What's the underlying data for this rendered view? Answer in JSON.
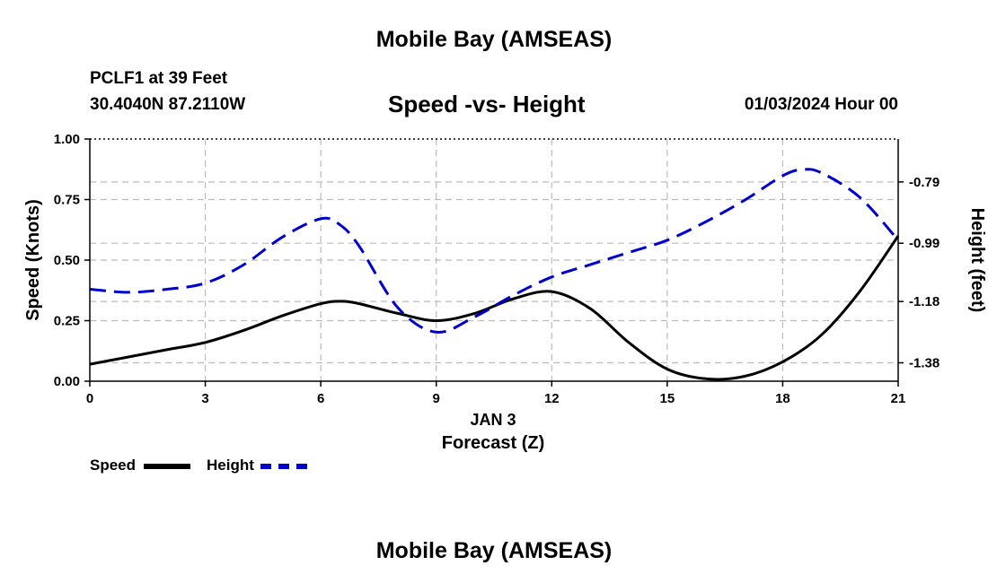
{
  "header": {
    "title": "Mobile Bay (AMSEAS)",
    "station": "PCLF1 at 39 Feet",
    "coords": "30.4040N  87.2110W",
    "subtitle": "Speed -vs- Height",
    "datetime": "01/03/2024 Hour 00"
  },
  "footer": {
    "title": "Mobile Bay (AMSEAS)"
  },
  "legend": {
    "speed_label": "Speed",
    "height_label": "Height"
  },
  "colors": {
    "speed": "#000000",
    "height": "#0000cc",
    "grid": "#bbbbbb"
  },
  "chart_data": {
    "type": "line",
    "xlabel": "Forecast (Z)",
    "xsublabel": "JAN 3",
    "ylabel_left": "Speed (Knots)",
    "ylabel_right": "Height (feet)",
    "xlim": [
      0,
      21
    ],
    "ylim_left": [
      0,
      1
    ],
    "ylim_right": [
      -1.44,
      -0.65
    ],
    "xticks": [
      0,
      3,
      6,
      9,
      12,
      15,
      18,
      21
    ],
    "xtick_labels": [
      "0",
      "3",
      "6",
      "9",
      "12",
      "15",
      "18",
      "21"
    ],
    "yticks_left": [
      0,
      0.25,
      0.5,
      0.75,
      1.0
    ],
    "ytick_labels_left": [
      "0.00",
      "0.25",
      "0.50",
      "0.75",
      "1.00"
    ],
    "yticks_right": [
      -1.38,
      -1.18,
      -0.99,
      -0.79
    ],
    "ytick_labels_right": [
      "-1.38",
      "-1.18",
      "-0.99",
      "-0.79"
    ],
    "grid": true,
    "legend_position": "bottom-left",
    "series": [
      {
        "name": "Speed",
        "axis": "left",
        "style": "solid",
        "x": [
          0,
          1,
          2,
          3,
          4,
          5,
          6,
          6.5,
          7,
          8,
          9,
          10,
          11,
          12,
          13,
          14,
          15,
          16,
          17,
          18,
          19,
          20,
          21
        ],
        "values": [
          0.07,
          0.1,
          0.13,
          0.16,
          0.21,
          0.27,
          0.32,
          0.33,
          0.32,
          0.28,
          0.25,
          0.28,
          0.34,
          0.37,
          0.3,
          0.16,
          0.05,
          0.01,
          0.02,
          0.08,
          0.19,
          0.37,
          0.6
        ]
      },
      {
        "name": "Height",
        "axis": "right",
        "style": "dashed",
        "x": [
          0,
          1,
          2,
          3,
          4,
          5,
          6,
          6.5,
          7,
          8,
          9,
          10,
          11,
          12,
          13,
          14,
          15,
          16,
          17,
          18,
          18.5,
          19,
          20,
          21
        ],
        "values": [
          -1.14,
          -1.15,
          -1.14,
          -1.12,
          -1.06,
          -0.97,
          -0.91,
          -0.93,
          -1.0,
          -1.2,
          -1.28,
          -1.23,
          -1.16,
          -1.1,
          -1.06,
          -1.02,
          -0.98,
          -0.92,
          -0.85,
          -0.77,
          -0.75,
          -0.76,
          -0.84,
          -0.98
        ]
      }
    ]
  }
}
